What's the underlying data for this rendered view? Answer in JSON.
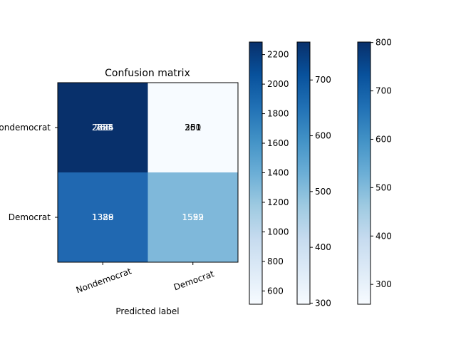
{
  "chart_data": {
    "type": "heatmap",
    "title": "Confusion matrix",
    "xlabel": "Predicted label",
    "ylabel": "",
    "row_labels": [
      "Nondemocrat",
      "Democrat"
    ],
    "col_labels": [
      "Nondemocrat",
      "Democrat"
    ],
    "matrices": [
      {
        "name": "matrix-1",
        "values": [
          [
            2285,
            251
          ],
          [
            1339,
            1552
          ]
        ]
      },
      {
        "name": "matrix-2",
        "values": [
          [
            768,
            260
          ],
          [
            1388,
            1592
          ]
        ]
      },
      {
        "name": "matrix-3",
        "values": [
          [
            2624,
            301
          ],
          [
            1329,
            1529
          ]
        ]
      }
    ],
    "colorbars": [
      {
        "name": "colorbar-1",
        "min": 510,
        "max": 2285,
        "ticks": [
          600,
          800,
          1000,
          1200,
          1400,
          1600,
          1800,
          2000,
          2200
        ]
      },
      {
        "name": "colorbar-2",
        "min": 298,
        "max": 768,
        "ticks": [
          300,
          400,
          500,
          600,
          700
        ]
      },
      {
        "name": "colorbar-3",
        "min": 259,
        "max": 801,
        "ticks": [
          300,
          400,
          500,
          600,
          700,
          800
        ]
      }
    ],
    "cell_colors": [
      [
        "#08306b",
        "#f7fbff"
      ],
      [
        "#2068b1",
        "#7fb8da"
      ]
    ],
    "colormap": "Blues"
  }
}
